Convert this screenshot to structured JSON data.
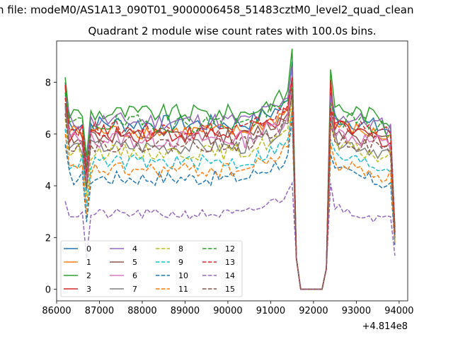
{
  "chart_data": {
    "type": "line",
    "title": "Quadrant 2 module wise count rates with 100.0s bins.",
    "file_label": "n file: modeM0/AS1A13_090T01_9000006458_51483cztM0_level2_quad_clean",
    "xlabel": "",
    "ylabel": "",
    "x_offset_label": "+4.814e8",
    "xlim": [
      86000,
      94200
    ],
    "ylim": [
      -0.45,
      9.6
    ],
    "x_ticks": [
      86000,
      87000,
      88000,
      89000,
      90000,
      91000,
      92000,
      93000,
      94000
    ],
    "x_tick_labels": [
      "86000",
      "87000",
      "88000",
      "89000",
      "90000",
      "91000",
      "92000",
      "93000",
      "94000"
    ],
    "y_ticks": [
      0,
      2,
      4,
      6,
      8
    ],
    "y_tick_labels": [
      "0",
      "2",
      "4",
      "6",
      "8"
    ],
    "legend_position": "lower-left",
    "legend_columns": 4,
    "x_range": [
      86200,
      93900
    ],
    "x_step": 100,
    "gap": {
      "start": 91700,
      "end": 92200
    },
    "series": [
      {
        "name": "0",
        "color": "#1f77b4",
        "dash": "solid",
        "base": 6.4,
        "amp": 0.35,
        "start": 8.0,
        "peak": 8.8,
        "post": 7.6,
        "end": 2.2
      },
      {
        "name": "1",
        "color": "#ff7f0e",
        "dash": "solid",
        "base": 6.1,
        "amp": 0.3,
        "start": 7.8,
        "peak": 8.1,
        "post": 7.4,
        "end": 2.0
      },
      {
        "name": "2",
        "color": "#2ca02c",
        "dash": "solid",
        "base": 6.8,
        "amp": 0.35,
        "start": 8.2,
        "peak": 9.3,
        "post": 8.5,
        "end": 2.4
      },
      {
        "name": "3",
        "color": "#d62728",
        "dash": "solid",
        "base": 6.0,
        "amp": 0.35,
        "start": 7.9,
        "peak": 8.2,
        "post": 8.1,
        "end": 2.3
      },
      {
        "name": "4",
        "color": "#9467bd",
        "dash": "solid",
        "base": 6.5,
        "amp": 0.35,
        "start": 7.5,
        "peak": 8.6,
        "post": 7.5,
        "end": 2.2
      },
      {
        "name": "5",
        "color": "#8c564b",
        "dash": "solid",
        "base": 5.9,
        "amp": 0.3,
        "start": 7.2,
        "peak": 8.0,
        "post": 7.0,
        "end": 2.1
      },
      {
        "name": "6",
        "color": "#e377c2",
        "dash": "solid",
        "base": 5.8,
        "amp": 0.35,
        "start": 7.0,
        "peak": 7.9,
        "post": 6.8,
        "end": 2.0
      },
      {
        "name": "7",
        "color": "#7f7f7f",
        "dash": "solid",
        "base": 5.5,
        "amp": 0.3,
        "start": 7.1,
        "peak": 7.6,
        "post": 6.6,
        "end": 2.0
      },
      {
        "name": "8",
        "color": "#bcbd22",
        "dash": "dashed",
        "base": 5.3,
        "amp": 0.3,
        "start": 6.6,
        "peak": 7.4,
        "post": 6.4,
        "end": 1.9
      },
      {
        "name": "9",
        "color": "#17becf",
        "dash": "dashed",
        "base": 4.9,
        "amp": 0.3,
        "start": 6.2,
        "peak": 6.9,
        "post": 5.8,
        "end": 1.8
      },
      {
        "name": "10",
        "color": "#1f77b4",
        "dash": "dashed",
        "base": 4.3,
        "amp": 0.3,
        "start": 5.6,
        "peak": 6.6,
        "post": 5.2,
        "end": 1.7
      },
      {
        "name": "11",
        "color": "#ff7f0e",
        "dash": "dashed",
        "base": 4.6,
        "amp": 0.3,
        "start": 6.0,
        "peak": 7.0,
        "post": 5.6,
        "end": 1.8
      },
      {
        "name": "12",
        "color": "#2ca02c",
        "dash": "dashed",
        "base": 6.4,
        "amp": 0.35,
        "start": 7.6,
        "peak": 7.8,
        "post": 7.2,
        "end": 2.1
      },
      {
        "name": "13",
        "color": "#d62728",
        "dash": "dashed",
        "base": 6.2,
        "amp": 0.3,
        "start": 7.4,
        "peak": 8.2,
        "post": 7.0,
        "end": 2.1
      },
      {
        "name": "14",
        "color": "#9467bd",
        "dash": "dashed",
        "base": 2.9,
        "amp": 0.2,
        "start": 3.4,
        "peak": 4.1,
        "post": 4.1,
        "end": 1.3
      },
      {
        "name": "15",
        "color": "#8c564b",
        "dash": "dashed",
        "base": 5.6,
        "amp": 0.3,
        "start": 6.8,
        "peak": 7.6,
        "post": 6.4,
        "end": 2.0
      }
    ]
  }
}
